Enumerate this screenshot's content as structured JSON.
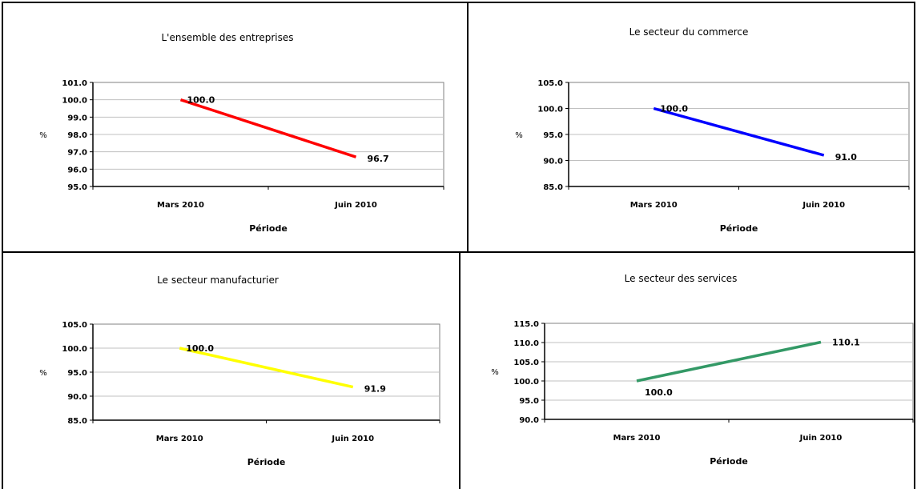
{
  "chart_data": [
    {
      "type": "line",
      "title": "L'ensemble des entreprises",
      "xlabel": "Période",
      "ylabel": "%",
      "categories": [
        "Mars 2010",
        "Juin 2010"
      ],
      "series": [
        {
          "values": [
            100.0,
            96.7
          ],
          "color": "#ff0000"
        }
      ],
      "data_labels": [
        "100.0",
        "96.7"
      ],
      "yticks": [
        "101.0",
        "100.0",
        "99.0",
        "98.0",
        "97.0",
        "96.0",
        "95.0"
      ],
      "ylim": [
        95,
        101
      ],
      "grid": true
    },
    {
      "type": "line",
      "title": "Le secteur du commerce",
      "xlabel": "Période",
      "ylabel": "%",
      "categories": [
        "Mars 2010",
        "Juin 2010"
      ],
      "series": [
        {
          "values": [
            100.0,
            91.0
          ],
          "color": "#0000ff"
        }
      ],
      "data_labels": [
        "100.0",
        "91.0"
      ],
      "yticks": [
        "105.0",
        "100.0",
        "95.0",
        "90.0",
        "85.0"
      ],
      "ylim": [
        85,
        105
      ],
      "grid": true
    },
    {
      "type": "line",
      "title": "Le secteur manufacturier",
      "xlabel": "Période",
      "ylabel": "%",
      "categories": [
        "Mars 2010",
        "Juin 2010"
      ],
      "series": [
        {
          "values": [
            100.0,
            91.9
          ],
          "color": "#ffff00"
        }
      ],
      "data_labels": [
        "100.0",
        "91.9"
      ],
      "yticks": [
        "105.0",
        "100.0",
        "95.0",
        "90.0",
        "85.0"
      ],
      "ylim": [
        85,
        105
      ],
      "grid": true
    },
    {
      "type": "line",
      "title": "Le secteur des services",
      "xlabel": "Période",
      "ylabel": "%",
      "categories": [
        "Mars 2010",
        "Juin 2010"
      ],
      "series": [
        {
          "values": [
            100.0,
            110.1
          ],
          "color": "#339966"
        }
      ],
      "data_labels": [
        "100.0",
        "110.1"
      ],
      "yticks": [
        "115.0",
        "110.0",
        "105.0",
        "100.0",
        "95.0",
        "90.0"
      ],
      "ylim": [
        90,
        115
      ],
      "grid": true
    }
  ]
}
